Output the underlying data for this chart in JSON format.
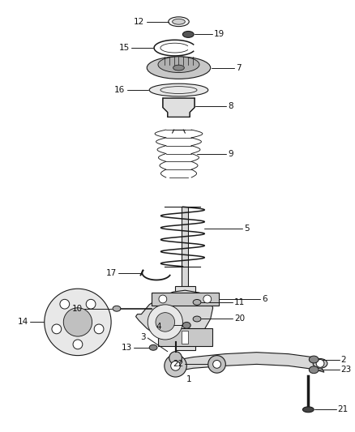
{
  "background_color": "#ffffff",
  "figsize": [
    4.38,
    5.33
  ],
  "dpi": 100,
  "line_color": "#1a1a1a",
  "lw": 0.8
}
